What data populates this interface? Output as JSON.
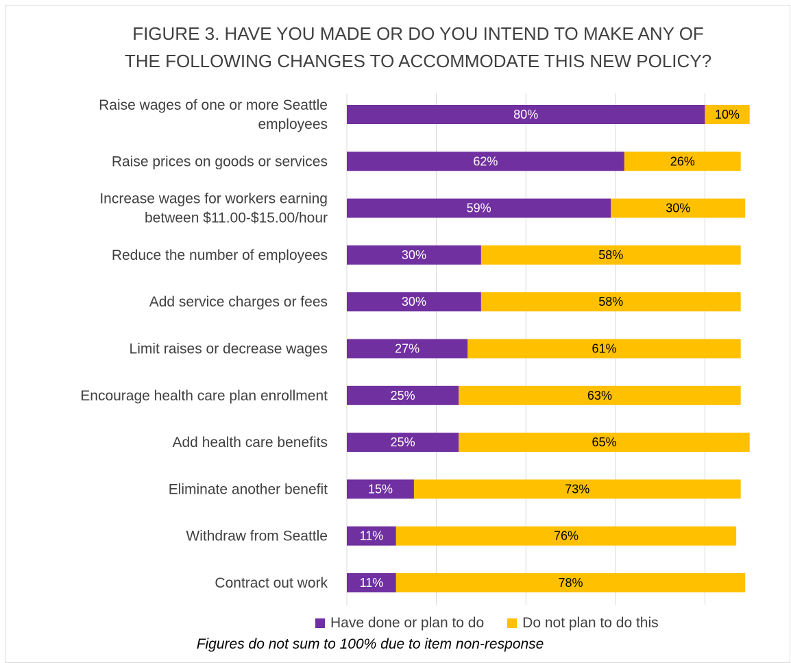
{
  "chart_data": {
    "type": "bar",
    "orientation": "horizontal",
    "stacked": true,
    "title_line1": "FIGURE 3. HAVE YOU MADE OR DO YOU INTEND TO MAKE ANY OF",
    "title_line2": "THE FOLLOWING CHANGES TO ACCOMMODATE THIS NEW POLICY?",
    "categories": [
      [
        "Raise wages of one or more Seattle",
        "employees"
      ],
      [
        "Raise prices on goods or services"
      ],
      [
        "Increase wages for workers earning",
        "between $11.00-$15.00/hour"
      ],
      [
        "Reduce the number of employees"
      ],
      [
        "Add service charges or fees"
      ],
      [
        "Limit raises or decrease wages"
      ],
      [
        "Encourage health care plan enrollment"
      ],
      [
        "Add health care benefits"
      ],
      [
        "Eliminate another benefit"
      ],
      [
        "Withdraw from Seattle"
      ],
      [
        "Contract out work"
      ]
    ],
    "series": [
      {
        "name": "Have done or plan to do",
        "color": "#7030a0",
        "values": [
          80,
          62,
          59,
          30,
          30,
          27,
          25,
          25,
          15,
          11,
          11
        ]
      },
      {
        "name": "Do not plan to do this",
        "color": "#ffc000",
        "values": [
          10,
          26,
          30,
          58,
          58,
          61,
          63,
          65,
          73,
          76,
          78
        ]
      }
    ],
    "label_suffix": "%",
    "xlim": [
      0,
      90
    ],
    "grid": true,
    "legend_position": "bottom",
    "footnote": "Figures do not sum to 100% due to item non-response"
  }
}
